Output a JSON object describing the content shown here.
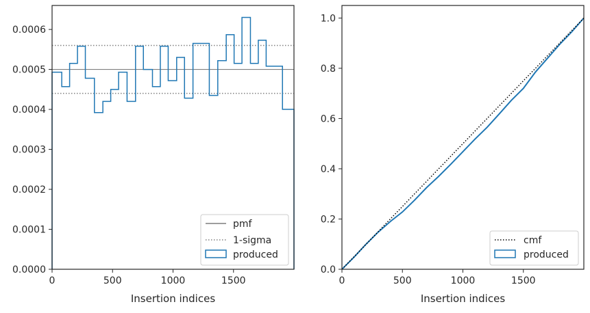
{
  "chart_data": [
    {
      "type": "step-histogram",
      "xlabel": "Insertion indices",
      "ylabel": "",
      "xlim": [
        0,
        2000
      ],
      "ylim": [
        0,
        0.00066
      ],
      "xticks": [
        "0",
        "500",
        "1000",
        "1500"
      ],
      "xtick_values": [
        0,
        500,
        1000,
        1500
      ],
      "yticks": [
        "0.0000",
        "0.0001",
        "0.0002",
        "0.0003",
        "0.0004",
        "0.0005",
        "0.0006"
      ],
      "ytick_values": [
        0,
        0.0001,
        0.0002,
        0.0003,
        0.0004,
        0.0005,
        0.0006
      ],
      "grid": false,
      "legend_position": "lower-right",
      "bin_edges": [
        0,
        80,
        145,
        210,
        275,
        350,
        420,
        485,
        550,
        620,
        690,
        755,
        830,
        895,
        960,
        1030,
        1095,
        1165,
        1300,
        1370,
        1440,
        1505,
        1570,
        1640,
        1705,
        1770,
        1905,
        2000
      ],
      "bin_values": [
        0.000493,
        0.000457,
        0.000515,
        0.000558,
        0.000478,
        0.000392,
        0.00042,
        0.00045,
        0.000493,
        0.00042,
        0.000558,
        0.0005,
        0.000457,
        0.000558,
        0.000472,
        0.00053,
        0.000428,
        0.000565,
        0.000435,
        0.000522,
        0.000587,
        0.000515,
        0.00063,
        0.000515,
        0.000573,
        0.000508,
        0.0004
      ],
      "pmf": 0.0005,
      "sigma_band": [
        0.00044,
        0.00056
      ],
      "legend": [
        {
          "label": "pmf",
          "style": "solid",
          "color": "#7f7f7f"
        },
        {
          "label": "1-sigma",
          "style": "dotted",
          "color": "#7f7f7f"
        },
        {
          "label": "produced",
          "style": "box",
          "color": "#1f77b4"
        }
      ]
    },
    {
      "type": "line",
      "xlabel": "Insertion indices",
      "ylabel": "",
      "xlim": [
        0,
        2000
      ],
      "ylim": [
        0,
        1.05
      ],
      "xticks": [
        "0",
        "500",
        "1000",
        "1500"
      ],
      "xtick_values": [
        0,
        500,
        1000,
        1500
      ],
      "yticks": [
        "0.0",
        "0.2",
        "0.4",
        "0.6",
        "0.8",
        "1.0"
      ],
      "ytick_values": [
        0,
        0.2,
        0.4,
        0.6,
        0.8,
        1.0
      ],
      "grid": false,
      "legend_position": "lower-right",
      "cmf": {
        "x": [
          0,
          2000
        ],
        "y": [
          0,
          1
        ]
      },
      "produced": {
        "x": [
          0,
          100,
          200,
          300,
          400,
          500,
          600,
          700,
          800,
          900,
          1000,
          1100,
          1200,
          1300,
          1400,
          1500,
          1600,
          1700,
          1800,
          1900,
          2000
        ],
        "y": [
          0,
          0.048,
          0.1,
          0.148,
          0.19,
          0.228,
          0.275,
          0.325,
          0.37,
          0.418,
          0.468,
          0.518,
          0.565,
          0.618,
          0.672,
          0.72,
          0.785,
          0.84,
          0.895,
          0.945,
          1.0
        ]
      },
      "legend": [
        {
          "label": "cmf",
          "style": "dotted",
          "color": "#000000"
        },
        {
          "label": "produced",
          "style": "box",
          "color": "#1f77b4"
        }
      ]
    }
  ]
}
